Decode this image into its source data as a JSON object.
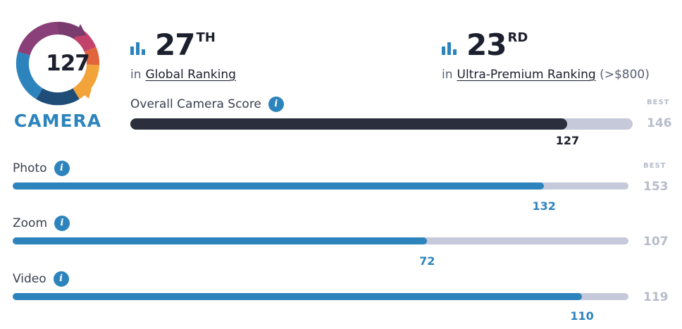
{
  "badge": {
    "score": "127",
    "label": "CAMERA",
    "colors": [
      "#7a3b6e",
      "#c2426b",
      "#e0643c",
      "#f2a33a",
      "#2d84bd",
      "#1f4d78"
    ]
  },
  "global_rank": {
    "number": "27",
    "suffix": "TH",
    "prefix": "in",
    "link": "Global Ranking",
    "suffix_text": ""
  },
  "segment_rank": {
    "number": "23",
    "suffix": "RD",
    "prefix": "in",
    "link": "Ultra-Premium Ranking",
    "suffix_text": "(>$800)"
  },
  "overall": {
    "label": "Overall Camera Score",
    "best_caption": "BEST",
    "score": 127,
    "best": 146,
    "score_text": "127",
    "best_text": "146",
    "fill_color": "#2b2f3d"
  },
  "metrics": [
    {
      "label": "Photo",
      "best_caption": "BEST",
      "score": 132,
      "best": 153,
      "score_text": "132",
      "best_text": "153",
      "fill_color": "#2d84bd"
    },
    {
      "label": "Zoom",
      "best_caption": "",
      "score": 72,
      "best": 107,
      "score_text": "72",
      "best_text": "107",
      "fill_color": "#2d84bd"
    },
    {
      "label": "Video",
      "best_caption": "",
      "score": 110,
      "best": 119,
      "score_text": "110",
      "best_text": "119",
      "fill_color": "#2d84bd"
    }
  ]
}
